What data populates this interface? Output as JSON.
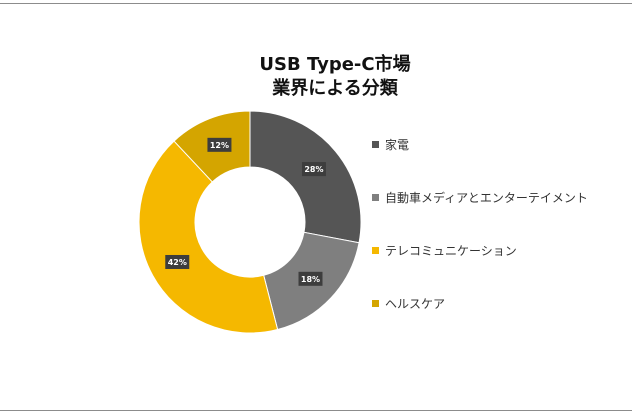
{
  "chart_data": {
    "type": "pie",
    "variant": "donut",
    "title_lines": [
      "USB Type-C市場",
      "業界による分類"
    ],
    "categories": [
      "家電",
      "自動車メディアとエンターテイメント",
      "テレコミュニケーション",
      "ヘルスケア"
    ],
    "values": [
      28,
      18,
      42,
      12
    ],
    "value_labels": [
      "28%",
      "18%",
      "42%",
      "12%"
    ],
    "colors": [
      "#555555",
      "#7f7f7f",
      "#f5b800",
      "#d4a500"
    ],
    "legend_position": "right"
  }
}
